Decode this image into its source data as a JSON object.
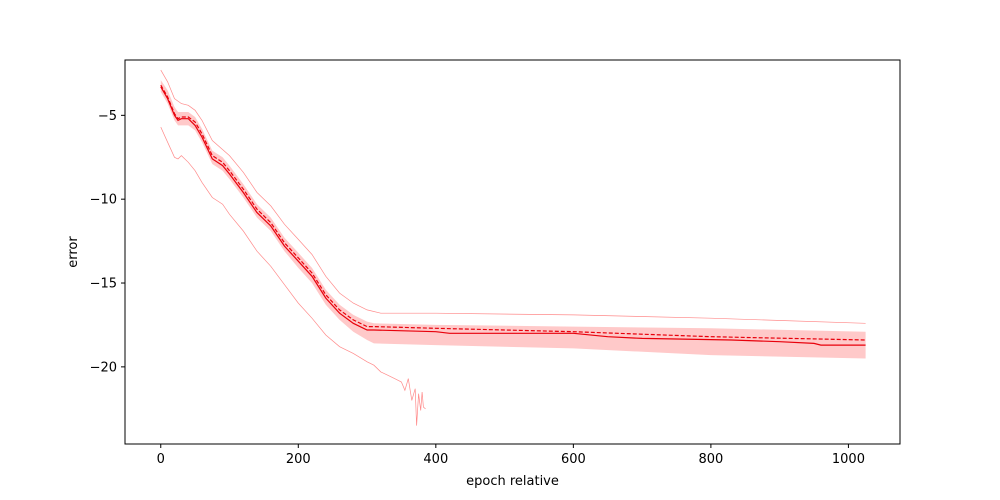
{
  "chart_data": {
    "type": "line",
    "title": "",
    "xlabel": "epoch relative",
    "ylabel": "error",
    "xlim": [
      -52,
      1075
    ],
    "ylim": [
      -24.6,
      -1.7
    ],
    "grid": false,
    "xticks": [
      0,
      200,
      400,
      600,
      800,
      1000
    ],
    "yticks": [
      -5,
      -10,
      -15,
      -20
    ],
    "ytick_labels": [
      "−5",
      "−10",
      "−15",
      "−20"
    ],
    "colors": {
      "line": "#e8000b",
      "band": "#ffc9c9",
      "envelope": "#ff8a8a"
    },
    "median": {
      "x": [
        0,
        10,
        20,
        25,
        30,
        40,
        50,
        60,
        75,
        90,
        100,
        120,
        140,
        160,
        180,
        200,
        220,
        240,
        260,
        280,
        300,
        310,
        400,
        420,
        600,
        650,
        700,
        830,
        900,
        950,
        960,
        1025
      ],
      "y": [
        -3.3,
        -4.0,
        -5.0,
        -5.3,
        -5.2,
        -5.2,
        -5.6,
        -6.3,
        -7.6,
        -8.0,
        -8.5,
        -9.6,
        -10.8,
        -11.6,
        -12.8,
        -13.7,
        -14.6,
        -15.9,
        -16.8,
        -17.4,
        -17.8,
        -17.8,
        -17.9,
        -18.0,
        -18.0,
        -18.2,
        -18.3,
        -18.4,
        -18.5,
        -18.6,
        -18.7,
        -18.7
      ]
    },
    "mean": {
      "x": [
        0,
        10,
        20,
        25,
        30,
        40,
        50,
        60,
        75,
        90,
        100,
        120,
        140,
        160,
        180,
        200,
        220,
        240,
        260,
        280,
        300,
        310,
        400,
        600,
        800,
        1025
      ],
      "y": [
        -3.2,
        -3.9,
        -4.9,
        -5.2,
        -5.1,
        -5.1,
        -5.4,
        -6.1,
        -7.4,
        -7.8,
        -8.3,
        -9.4,
        -10.6,
        -11.4,
        -12.6,
        -13.5,
        -14.4,
        -15.7,
        -16.6,
        -17.2,
        -17.6,
        -17.6,
        -17.7,
        -17.9,
        -18.2,
        -18.4
      ]
    },
    "band": {
      "x": [
        0,
        10,
        20,
        25,
        30,
        40,
        50,
        60,
        75,
        90,
        100,
        120,
        140,
        160,
        180,
        200,
        220,
        240,
        260,
        280,
        300,
        310,
        400,
        600,
        800,
        1025
      ],
      "upper": [
        -2.9,
        -3.5,
        -4.5,
        -4.8,
        -4.8,
        -4.8,
        -5.1,
        -5.8,
        -7.1,
        -7.5,
        -8.0,
        -9.1,
        -10.3,
        -11.1,
        -12.3,
        -13.2,
        -14.1,
        -15.4,
        -16.3,
        -16.9,
        -17.3,
        -17.4,
        -17.5,
        -17.6,
        -17.7,
        -17.9
      ],
      "lower": [
        -3.6,
        -4.3,
        -5.3,
        -5.6,
        -5.6,
        -5.6,
        -5.9,
        -6.6,
        -7.9,
        -8.3,
        -8.8,
        -9.9,
        -11.1,
        -11.9,
        -13.1,
        -14.1,
        -15.0,
        -16.3,
        -17.2,
        -17.9,
        -18.4,
        -18.6,
        -18.7,
        -18.9,
        -19.3,
        -19.5
      ]
    },
    "upper_envelope": {
      "x": [
        0,
        10,
        20,
        30,
        40,
        50,
        60,
        75,
        100,
        120,
        140,
        160,
        180,
        200,
        220,
        240,
        260,
        280,
        300,
        320,
        400,
        600,
        800,
        1025
      ],
      "y": [
        -2.3,
        -3.0,
        -4.0,
        -4.3,
        -4.4,
        -4.7,
        -5.3,
        -6.5,
        -7.4,
        -8.4,
        -9.6,
        -10.4,
        -11.5,
        -12.4,
        -13.3,
        -14.6,
        -15.6,
        -16.2,
        -16.6,
        -16.8,
        -16.8,
        -16.9,
        -17.1,
        -17.4
      ]
    },
    "lower_envelope": {
      "x": [
        0,
        10,
        20,
        25,
        30,
        40,
        50,
        60,
        75,
        90,
        100,
        120,
        140,
        160,
        180,
        200,
        220,
        240,
        260,
        280,
        300,
        310,
        320,
        330,
        340,
        350,
        355,
        360,
        365,
        370,
        372,
        375,
        378,
        380,
        382,
        385
      ],
      "y": [
        -5.7,
        -6.6,
        -7.5,
        -7.6,
        -7.4,
        -7.8,
        -8.3,
        -9.0,
        -9.9,
        -10.3,
        -10.9,
        -11.9,
        -13.1,
        -14.0,
        -15.1,
        -16.2,
        -17.1,
        -18.1,
        -18.8,
        -19.2,
        -19.7,
        -19.9,
        -20.3,
        -20.5,
        -20.7,
        -20.9,
        -21.4,
        -20.7,
        -22.0,
        -21.3,
        -23.5,
        -21.6,
        -22.6,
        -21.5,
        -22.4,
        -22.5
      ]
    }
  }
}
